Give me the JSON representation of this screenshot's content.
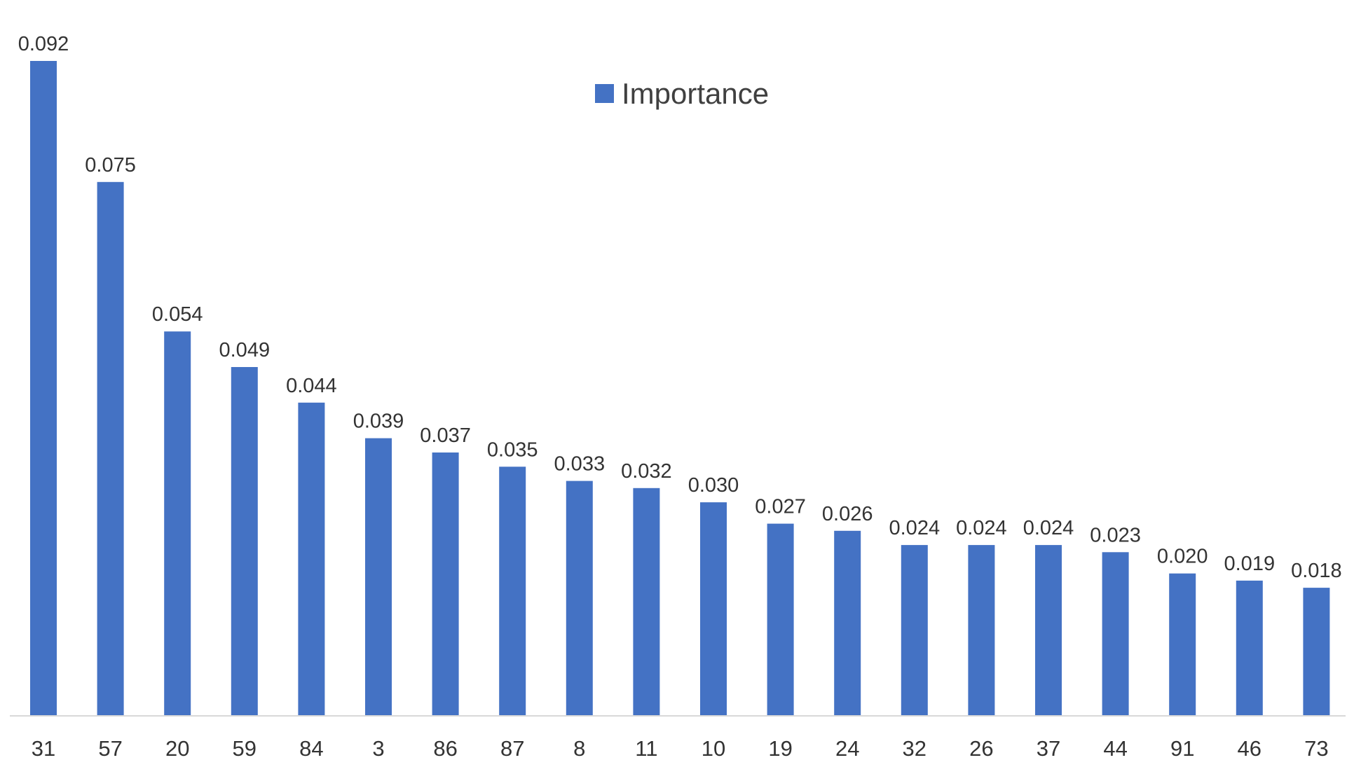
{
  "chart_data": {
    "type": "bar",
    "categories": [
      "31",
      "57",
      "20",
      "59",
      "84",
      "3",
      "86",
      "87",
      "8",
      "11",
      "10",
      "19",
      "24",
      "32",
      "26",
      "37",
      "44",
      "91",
      "46",
      "73"
    ],
    "series": [
      {
        "name": "Importance",
        "values": [
          0.092,
          0.075,
          0.054,
          0.049,
          0.044,
          0.039,
          0.037,
          0.035,
          0.033,
          0.032,
          0.03,
          0.027,
          0.026,
          0.024,
          0.024,
          0.024,
          0.023,
          0.02,
          0.019,
          0.018
        ],
        "labels": [
          "0.092",
          "0.075",
          "0.054",
          "0.049",
          "0.044",
          "0.039",
          "0.037",
          "0.035",
          "0.033",
          "0.032",
          "0.030",
          "0.027",
          "0.026",
          "0.024",
          "0.024",
          "0.024",
          "0.023",
          "0.020",
          "0.019",
          "0.018"
        ],
        "color": "#4472C4"
      }
    ],
    "title": "",
    "xlabel": "",
    "ylabel": "",
    "ylim": [
      0,
      0.092
    ],
    "grid": false,
    "legend": {
      "position": "top-center",
      "entries": [
        "Importance"
      ]
    },
    "axis_color": "#D9D9D9"
  }
}
